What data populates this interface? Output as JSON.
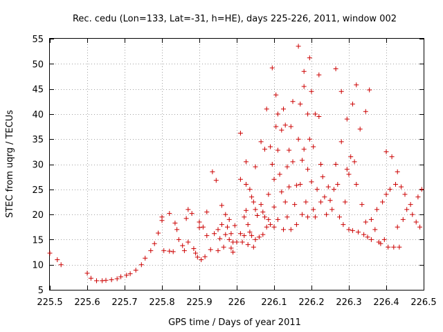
{
  "chart_data": {
    "type": "scatter",
    "title": "Rec. cedu (Lon=133, Lat=-31, h=HE), days 225-226, 2011, window 002",
    "xlabel": "GPS time / Days of year 2011",
    "ylabel": "STEC from uqrg / TECUs",
    "xlim": [
      225.5,
      226.5
    ],
    "ylim": [
      5,
      55
    ],
    "xticks": [
      225.5,
      225.6,
      225.7,
      225.8,
      225.9,
      226,
      226.1,
      226.2,
      226.3,
      226.4,
      226.5
    ],
    "xtick_labels": [
      "225.5",
      "225.6",
      "225.7",
      "225.8",
      "225.9",
      "226",
      "226.1",
      "226.2",
      "226.3",
      "226.4",
      "226.5"
    ],
    "yticks": [
      5,
      10,
      15,
      20,
      25,
      30,
      35,
      40,
      45,
      50,
      55
    ],
    "ytick_labels": [
      "5",
      "10",
      "15",
      "20",
      "25",
      "30",
      "35",
      "40",
      "45",
      "50",
      "55"
    ],
    "grid": true,
    "marker": "plus",
    "color": "#cc0000",
    "points": [
      [
        225.5,
        12.3
      ],
      [
        225.52,
        11.0
      ],
      [
        225.53,
        10.0
      ],
      [
        225.6,
        8.3
      ],
      [
        225.61,
        7.3
      ],
      [
        225.625,
        6.8
      ],
      [
        225.64,
        6.8
      ],
      [
        225.65,
        6.9
      ],
      [
        225.665,
        7.0
      ],
      [
        225.68,
        7.2
      ],
      [
        225.69,
        7.6
      ],
      [
        225.705,
        7.9
      ],
      [
        225.715,
        8.2
      ],
      [
        225.73,
        8.9
      ],
      [
        225.745,
        10.0
      ],
      [
        225.755,
        11.3
      ],
      [
        225.77,
        12.8
      ],
      [
        225.78,
        14.2
      ],
      [
        225.79,
        16.3
      ],
      [
        225.8,
        19.5
      ],
      [
        225.805,
        12.8
      ],
      [
        225.82,
        12.7
      ],
      [
        225.83,
        12.6
      ],
      [
        225.835,
        18.3
      ],
      [
        225.845,
        15.0
      ],
      [
        225.855,
        13.8
      ],
      [
        225.865,
        19.2
      ],
      [
        225.87,
        14.5
      ],
      [
        225.88,
        20.2
      ],
      [
        225.885,
        13.2
      ],
      [
        225.89,
        12.3
      ],
      [
        225.895,
        11.5
      ],
      [
        225.9,
        17.4
      ],
      [
        225.905,
        11.0
      ],
      [
        225.915,
        11.6
      ],
      [
        225.92,
        15.8
      ],
      [
        225.93,
        13.0
      ],
      [
        225.935,
        28.5
      ],
      [
        225.94,
        16.2
      ],
      [
        225.945,
        26.8
      ],
      [
        225.95,
        12.8
      ],
      [
        225.955,
        15.2
      ],
      [
        225.96,
        18.0
      ],
      [
        225.965,
        13.5
      ],
      [
        225.97,
        20.0
      ],
      [
        225.975,
        17.5
      ],
      [
        225.98,
        15.0
      ],
      [
        225.985,
        13.3
      ],
      [
        225.99,
        12.5
      ],
      [
        225.995,
        17.8
      ],
      [
        225.8,
        18.8
      ],
      [
        225.82,
        20.2
      ],
      [
        225.84,
        17.0
      ],
      [
        225.86,
        12.8
      ],
      [
        225.87,
        21.0
      ],
      [
        225.9,
        18.5
      ],
      [
        225.91,
        17.5
      ],
      [
        225.92,
        20.5
      ],
      [
        225.95,
        17.0
      ],
      [
        225.96,
        21.8
      ],
      [
        225.97,
        16.0
      ],
      [
        225.98,
        19.0
      ],
      [
        225.985,
        16.2
      ],
      [
        225.99,
        14.5
      ],
      [
        226.0,
        14.5
      ],
      [
        226.01,
        36.2
      ],
      [
        226.01,
        27.0
      ],
      [
        226.01,
        16.2
      ],
      [
        226.015,
        14.5
      ],
      [
        226.02,
        19.5
      ],
      [
        226.02,
        15.8
      ],
      [
        226.025,
        30.5
      ],
      [
        226.025,
        20.8
      ],
      [
        226.025,
        26.0
      ],
      [
        226.03,
        18.0
      ],
      [
        226.03,
        14.0
      ],
      [
        226.035,
        25.0
      ],
      [
        226.035,
        16.5
      ],
      [
        226.04,
        23.5
      ],
      [
        226.04,
        15.8
      ],
      [
        226.045,
        22.5
      ],
      [
        226.045,
        13.5
      ],
      [
        226.05,
        29.5
      ],
      [
        226.05,
        21.0
      ],
      [
        226.05,
        15.0
      ],
      [
        226.055,
        19.8
      ],
      [
        226.06,
        15.5
      ],
      [
        226.065,
        34.5
      ],
      [
        226.065,
        22.0
      ],
      [
        226.07,
        20.5
      ],
      [
        226.07,
        16.0
      ],
      [
        226.075,
        33.0
      ],
      [
        226.075,
        19.5
      ],
      [
        226.08,
        41.0
      ],
      [
        226.08,
        17.5
      ],
      [
        226.085,
        24.0
      ],
      [
        226.085,
        19.0
      ],
      [
        226.09,
        33.5
      ],
      [
        226.09,
        18.0
      ],
      [
        226.095,
        49.2
      ],
      [
        226.095,
        30.0
      ],
      [
        226.1,
        27.0
      ],
      [
        226.1,
        21.5
      ],
      [
        226.1,
        17.5
      ],
      [
        226.105,
        43.8
      ],
      [
        226.105,
        37.5
      ],
      [
        226.11,
        40.0
      ],
      [
        226.11,
        32.8
      ],
      [
        226.11,
        19.0
      ],
      [
        226.115,
        28.0
      ],
      [
        226.12,
        36.8
      ],
      [
        226.12,
        24.5
      ],
      [
        226.125,
        41.0
      ],
      [
        226.125,
        17.0
      ],
      [
        226.13,
        37.8
      ],
      [
        226.13,
        22.5
      ],
      [
        226.135,
        29.5
      ],
      [
        226.135,
        19.5
      ],
      [
        226.14,
        32.8
      ],
      [
        226.14,
        25.5
      ],
      [
        226.145,
        37.5
      ],
      [
        226.145,
        17.0
      ],
      [
        226.15,
        42.5
      ],
      [
        226.15,
        30.5
      ],
      [
        226.155,
        22.0
      ],
      [
        226.16,
        25.8
      ],
      [
        226.16,
        18.0
      ],
      [
        226.165,
        53.5
      ],
      [
        226.165,
        35.0
      ],
      [
        226.17,
        42.0
      ],
      [
        226.17,
        26.0
      ],
      [
        226.175,
        30.8
      ],
      [
        226.175,
        20.0
      ],
      [
        226.18,
        48.5
      ],
      [
        226.18,
        45.5
      ],
      [
        226.18,
        33.0
      ],
      [
        226.185,
        22.5
      ],
      [
        226.19,
        40.0
      ],
      [
        226.19,
        29.0
      ],
      [
        226.19,
        19.5
      ],
      [
        226.195,
        51.2
      ],
      [
        226.195,
        35.0
      ],
      [
        226.2,
        44.5
      ],
      [
        226.2,
        26.5
      ],
      [
        226.205,
        33.5
      ],
      [
        226.205,
        21.0
      ],
      [
        226.21,
        40.0
      ],
      [
        226.21,
        19.5
      ],
      [
        226.215,
        25.0
      ],
      [
        226.22,
        47.8
      ],
      [
        226.22,
        39.5
      ],
      [
        226.225,
        30.0
      ],
      [
        226.225,
        22.5
      ],
      [
        226.23,
        27.5
      ],
      [
        226.235,
        23.5
      ],
      [
        226.24,
        20.0
      ],
      [
        226.245,
        25.5
      ],
      [
        226.25,
        22.8
      ],
      [
        226.255,
        21.0
      ],
      [
        226.26,
        25.0
      ],
      [
        226.265,
        49.0
      ],
      [
        226.265,
        30.0
      ],
      [
        226.27,
        26.0
      ],
      [
        226.275,
        19.5
      ],
      [
        226.28,
        44.5
      ],
      [
        226.28,
        34.5
      ],
      [
        226.285,
        18.0
      ],
      [
        226.29,
        22.5
      ],
      [
        226.295,
        39.0
      ],
      [
        226.295,
        29.0
      ],
      [
        226.3,
        28.0
      ],
      [
        226.3,
        17.0
      ],
      [
        226.305,
        31.5
      ],
      [
        226.31,
        42.0
      ],
      [
        226.31,
        16.8
      ],
      [
        226.315,
        30.5
      ],
      [
        226.32,
        45.8
      ],
      [
        226.32,
        26.0
      ],
      [
        226.325,
        16.5
      ],
      [
        226.33,
        37.0
      ],
      [
        226.335,
        22.0
      ],
      [
        226.34,
        16.0
      ],
      [
        226.345,
        40.5
      ],
      [
        226.345,
        18.5
      ],
      [
        226.35,
        15.5
      ],
      [
        226.355,
        44.8
      ],
      [
        226.36,
        19.0
      ],
      [
        226.36,
        15.0
      ],
      [
        226.37,
        17.0
      ],
      [
        226.375,
        21.0
      ],
      [
        226.38,
        14.5
      ],
      [
        226.385,
        14.2
      ],
      [
        226.39,
        22.5
      ],
      [
        226.395,
        15.0
      ],
      [
        226.4,
        32.5
      ],
      [
        226.4,
        24.0
      ],
      [
        226.405,
        13.5
      ],
      [
        226.41,
        25.0
      ],
      [
        226.415,
        31.5
      ],
      [
        226.42,
        13.5
      ],
      [
        226.425,
        26.0
      ],
      [
        226.43,
        28.5
      ],
      [
        226.43,
        17.5
      ],
      [
        226.435,
        13.5
      ],
      [
        226.44,
        25.5
      ],
      [
        226.445,
        19.0
      ],
      [
        226.45,
        24.0
      ],
      [
        226.455,
        21.0
      ],
      [
        226.465,
        22.0
      ],
      [
        226.47,
        20.0
      ],
      [
        226.48,
        18.5
      ],
      [
        226.485,
        23.5
      ],
      [
        226.49,
        17.5
      ],
      [
        226.495,
        25.0
      ]
    ]
  }
}
